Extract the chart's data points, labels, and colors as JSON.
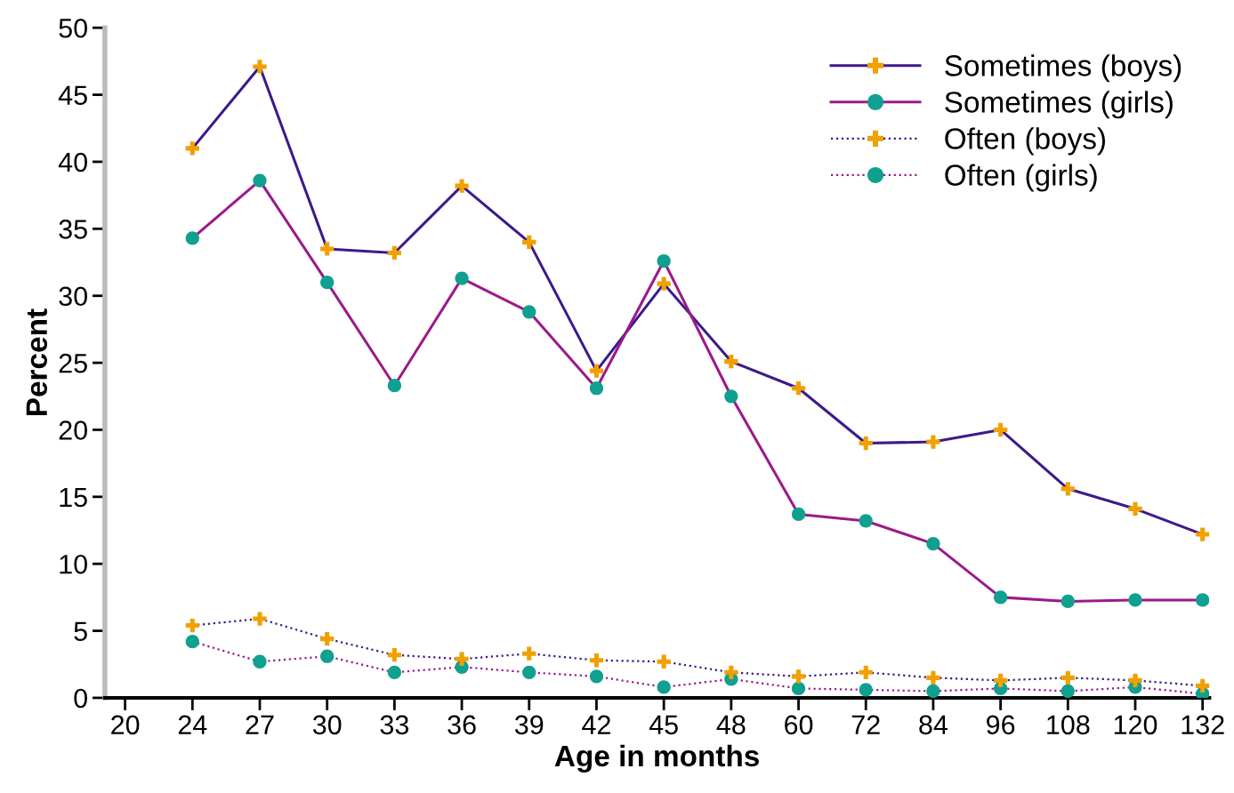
{
  "chart_data": {
    "type": "line",
    "xlabel": "Age in months",
    "ylabel": "Percent",
    "categories": [
      "20",
      "24",
      "27",
      "30",
      "33",
      "36",
      "39",
      "42",
      "45",
      "48",
      "60",
      "72",
      "84",
      "96",
      "108",
      "120",
      "132"
    ],
    "ylim": [
      0,
      50
    ],
    "yticks": [
      0,
      5,
      10,
      15,
      20,
      25,
      30,
      35,
      40,
      45,
      50
    ],
    "grid": false,
    "legend": "top right",
    "series": [
      {
        "name": "Sometimes (boys)",
        "color": "#3d1a8a",
        "line_style": "solid",
        "marker": "cross",
        "colors": [
          "#f0a000",
          "#f0a000",
          "#f0a000",
          "#f0a000",
          "#f0a000",
          "#f0a000",
          "#f0a000",
          "#f0a000",
          "#f0a000",
          "#f0a000",
          "#f0a000",
          "#f0a000",
          "#f0a000",
          "#f0a000",
          "#f0a000",
          "#f0a000",
          "#f0a000"
        ],
        "values": [
          null,
          41.0,
          47.1,
          33.5,
          33.2,
          38.2,
          34.0,
          24.4,
          30.9,
          25.1,
          23.1,
          19.0,
          19.1,
          20.0,
          15.6,
          14.1,
          12.2
        ]
      },
      {
        "name": "Sometimes (girls)",
        "color": "#9b1a8a",
        "line_style": "solid",
        "marker": "circle",
        "colors": [
          "#10a090",
          "#10a090",
          "#10a090",
          "#10a090",
          "#10a090",
          "#10a090",
          "#10a090",
          "#10a090",
          "#10a090",
          "#10a090",
          "#10a090",
          "#10a090",
          "#10a090",
          "#10a090",
          "#10a090",
          "#10a090",
          "#10a090"
        ],
        "values": [
          null,
          34.3,
          38.6,
          31.0,
          23.3,
          31.3,
          28.8,
          23.1,
          32.6,
          22.5,
          13.7,
          13.2,
          11.5,
          7.5,
          7.2,
          7.3,
          7.3
        ]
      },
      {
        "name": "Often (boys)",
        "color": "#3d1a8a",
        "line_style": "dotted",
        "marker": "cross",
        "colors": [
          "#f0a000",
          "#f0a000",
          "#f0a000",
          "#f0a000",
          "#f0a000",
          "#f0a000",
          "#f0a000",
          "#f0a000",
          "#f0a000",
          "#f0a000",
          "#f0a000",
          "#f0a000",
          "#f0a000",
          "#f0a000",
          "#f0a000",
          "#f0a000",
          "#f0a000"
        ],
        "values": [
          null,
          5.4,
          5.9,
          4.4,
          3.2,
          2.9,
          3.3,
          2.8,
          2.7,
          1.9,
          1.6,
          1.9,
          1.5,
          1.3,
          1.5,
          1.3,
          0.9
        ]
      },
      {
        "name": "Often (girls)",
        "color": "#9b1a8a",
        "line_style": "dotted",
        "marker": "circle",
        "colors": [
          "#10a090",
          "#10a090",
          "#10a090",
          "#10a090",
          "#10a090",
          "#10a090",
          "#10a090",
          "#10a090",
          "#10a090",
          "#10a090",
          "#10a090",
          "#10a090",
          "#10a090",
          "#10a090",
          "#10a090",
          "#10a090",
          "#10a090"
        ],
        "values": [
          null,
          4.2,
          2.7,
          3.1,
          1.9,
          2.3,
          1.9,
          1.6,
          0.8,
          1.4,
          0.7,
          0.6,
          0.5,
          0.7,
          0.5,
          0.8,
          0.3
        ]
      }
    ]
  }
}
